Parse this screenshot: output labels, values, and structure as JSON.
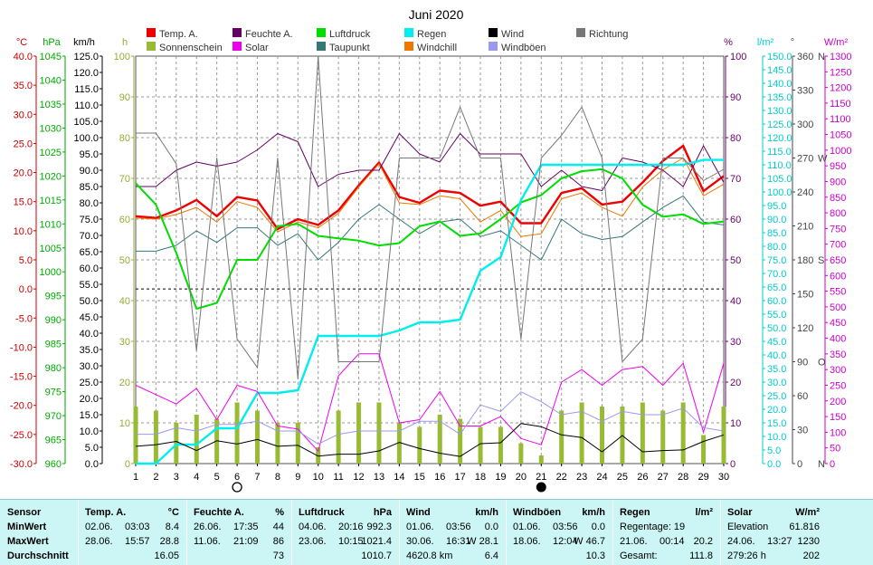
{
  "chart_data": {
    "type": "line",
    "title": "Juni 2020",
    "x": [
      1,
      2,
      3,
      4,
      5,
      6,
      7,
      8,
      9,
      10,
      11,
      12,
      13,
      14,
      15,
      16,
      17,
      18,
      19,
      20,
      21,
      22,
      23,
      24,
      25,
      26,
      27,
      28,
      29,
      30
    ],
    "x_ticks": [
      "1",
      "2",
      "3",
      "4",
      "5",
      "6",
      "7",
      "8",
      "9",
      "10",
      "11",
      "12",
      "13",
      "14",
      "15",
      "16",
      "17",
      "18",
      "19",
      "20",
      "21",
      "22",
      "23",
      "24",
      "25",
      "26",
      "27",
      "28",
      "29",
      "30"
    ],
    "xlim": [
      1,
      30
    ],
    "axes": [
      {
        "label": "°C",
        "color": "#cc0000",
        "min": -30,
        "max": 40,
        "step": 5,
        "ticks_fmt": "1"
      },
      {
        "label": "hPa",
        "color": "#00aa00",
        "min": 960,
        "max": 1045,
        "step": 5,
        "ticks_fmt": "0"
      },
      {
        "label": "km/h",
        "color": "#000000",
        "min": 0,
        "max": 125,
        "step": 5,
        "ticks_fmt": "1"
      },
      {
        "label": "h",
        "color": "#99aa33",
        "min": 0,
        "max": 100,
        "step": 10,
        "ticks_fmt": "0"
      },
      {
        "label": "%",
        "color": "#660066",
        "min": 0,
        "max": 100,
        "step": 10,
        "ticks_fmt": "0"
      },
      {
        "label": "l/m²",
        "color": "#00cccc",
        "min": 0,
        "max": 150,
        "step": 5,
        "ticks_fmt": "1"
      },
      {
        "label": "°",
        "color": "#444444",
        "min": 0,
        "max": 360,
        "step": 30,
        "ticks_fmt": "0"
      },
      {
        "label": "W/m²",
        "color": "#cc00cc",
        "min": 0,
        "max": 1300,
        "step": 50,
        "ticks_fmt": "0"
      }
    ],
    "compass": [
      {
        "deg": 0,
        "label": "N"
      },
      {
        "deg": 90,
        "label": "O"
      },
      {
        "deg": 180,
        "label": "S"
      },
      {
        "deg": 270,
        "label": "W"
      },
      {
        "deg": 360,
        "label": "N"
      }
    ],
    "legend": [
      {
        "name": "Temp. A.",
        "color": "#ee0000"
      },
      {
        "name": "Feuchte A.",
        "color": "#660066"
      },
      {
        "name": "Luftdruck",
        "color": "#00dd00"
      },
      {
        "name": "Regen",
        "color": "#00eeee"
      },
      {
        "name": "Wind",
        "color": "#000000"
      },
      {
        "name": "Richtung",
        "color": "#777777"
      },
      {
        "name": "Sonnenschein",
        "color": "#99bb33"
      },
      {
        "name": "Solar",
        "color": "#ee00ee"
      },
      {
        "name": "Taupunkt",
        "color": "#337777"
      },
      {
        "name": "Windchill",
        "color": "#ee7700"
      },
      {
        "name": "Windböen",
        "color": "#9999ee"
      }
    ],
    "series": [
      {
        "name": "Temp. A.",
        "axis": 0,
        "color": "#ee0000",
        "width": 2.4,
        "values": [
          12.5,
          12.2,
          13.5,
          15.3,
          12.5,
          15.8,
          15.2,
          10.3,
          12.0,
          11.0,
          13.5,
          17.8,
          21.7,
          15.8,
          14.8,
          16.9,
          16.5,
          14.3,
          15.0,
          11.3,
          11.3,
          16.5,
          17.3,
          14.5,
          15.0,
          18.3,
          22.0,
          24.6,
          16.8,
          19.4
        ]
      },
      {
        "name": "Windchill",
        "axis": 0,
        "color": "#ee7700",
        "width": 1,
        "values": [
          12.2,
          12.0,
          12.8,
          14.0,
          11.5,
          15.0,
          14.0,
          9.8,
          11.5,
          10.5,
          13.0,
          17.5,
          21.5,
          14.8,
          14.5,
          16.0,
          15.5,
          11.5,
          13.5,
          9.0,
          9.5,
          15.5,
          16.5,
          14.0,
          12.5,
          17.5,
          20.5,
          22.5,
          16.0,
          18.0
        ]
      },
      {
        "name": "Taupunkt",
        "axis": 0,
        "color": "#337777",
        "width": 1,
        "values": [
          6.5,
          6.5,
          7.5,
          10.0,
          8.0,
          10.5,
          10.5,
          7.5,
          9.5,
          5.0,
          8.0,
          12.0,
          14.5,
          12.0,
          9.5,
          11.5,
          12.0,
          9.0,
          10.0,
          7.5,
          5.0,
          12.0,
          9.5,
          8.5,
          9.0,
          11.5,
          14.0,
          16.0,
          11.5,
          11.0
        ]
      },
      {
        "name": "Feuchte A.",
        "axis": 4,
        "color": "#660066",
        "width": 1,
        "values": [
          68,
          68,
          72,
          74,
          73,
          74,
          77,
          81,
          79,
          68,
          71,
          72,
          72,
          81,
          76,
          74,
          81,
          76,
          76,
          76,
          68,
          72,
          68,
          67,
          75,
          74,
          72,
          68,
          78,
          69
        ]
      },
      {
        "name": "Luftdruck",
        "axis": 1,
        "color": "#00dd00",
        "width": 2,
        "values": [
          1018.5,
          1014.0,
          1004.0,
          992.3,
          993.5,
          1002.5,
          1002.5,
          1009.5,
          1010.0,
          1007.5,
          1007.0,
          1006.5,
          1005.5,
          1006.0,
          1009.5,
          1010.5,
          1007.5,
          1008.0,
          1011.0,
          1014.5,
          1016.0,
          1019.5,
          1021.0,
          1021.4,
          1019.5,
          1014.0,
          1011.5,
          1012.0,
          1010.0,
          1010.5
        ]
      },
      {
        "name": "Regen",
        "axis": 5,
        "color": "#00eeee",
        "width": 2.4,
        "values": [
          0,
          0,
          7,
          7,
          13,
          13,
          26,
          26,
          27,
          47,
          47,
          47,
          47,
          49,
          52,
          52,
          53,
          71,
          76,
          97,
          110,
          110,
          110,
          110,
          110,
          110,
          110,
          110,
          111.8,
          111.8
        ]
      },
      {
        "name": "Richtung",
        "axis": 6,
        "color": "#777777",
        "width": 1,
        "values": [
          292,
          292,
          265,
          100,
          270,
          110,
          85,
          270,
          75,
          360,
          90,
          90,
          90,
          270,
          270,
          270,
          315,
          270,
          270,
          110,
          270,
          290,
          315,
          270,
          90,
          110,
          270,
          270,
          250,
          260
        ]
      },
      {
        "name": "Solar",
        "axis": 7,
        "color": "#ee00ee",
        "width": 1,
        "values": [
          250,
          220,
          190,
          240,
          140,
          250,
          230,
          120,
          110,
          40,
          280,
          350,
          350,
          130,
          140,
          230,
          120,
          120,
          150,
          80,
          60,
          260,
          300,
          250,
          300,
          310,
          250,
          320,
          100,
          320
        ]
      },
      {
        "name": "Windböen",
        "axis": 2,
        "color": "#9999ee",
        "width": 1,
        "values": [
          9,
          9,
          11,
          10,
          12,
          12,
          13,
          10,
          10,
          6,
          9,
          10,
          10,
          10,
          13,
          13,
          9,
          18,
          16,
          22,
          19,
          15,
          16,
          13,
          16,
          15,
          15,
          17,
          11,
          10
        ]
      },
      {
        "name": "Wind",
        "axis": 2,
        "color": "#000000",
        "width": 1,
        "values": [
          5.3,
          5.8,
          6.8,
          4.0,
          7.0,
          6.0,
          7.4,
          5.3,
          5.6,
          2.3,
          2.9,
          2.9,
          3.9,
          6.5,
          4.6,
          3.2,
          2.2,
          6.1,
          6.4,
          12.3,
          11.3,
          8.8,
          8.0,
          3.6,
          8.6,
          3.6,
          4.0,
          4.2,
          6.8,
          8.8
        ]
      }
    ],
    "bars": {
      "name": "Sonnenschein",
      "axis": 3,
      "color": "#99bb33",
      "values": [
        14,
        13,
        10,
        12,
        11,
        15,
        13,
        10,
        10,
        4,
        13,
        15,
        15,
        10,
        9,
        12,
        11,
        9,
        9,
        5,
        2,
        13,
        15,
        14,
        14,
        15,
        13,
        15,
        7,
        14
      ]
    },
    "reference_line": {
      "axis": 0,
      "value": 0.0
    },
    "moon_markers": [
      {
        "day": 6,
        "phase": "full"
      },
      {
        "day": 21,
        "phase": "new"
      }
    ]
  },
  "summary": {
    "row_labels": [
      "Sensor",
      "MinWert",
      "MaxWert",
      "Durchschnitt"
    ],
    "columns": [
      {
        "title": "Temp. A.",
        "unit": "°C",
        "rows": [
          [
            "02.06.",
            "03:03",
            "8.4"
          ],
          [
            "28.06.",
            "15:57",
            "28.8"
          ],
          [
            "",
            "",
            "16.05"
          ]
        ]
      },
      {
        "title": "Feuchte A.",
        "unit": "%",
        "rows": [
          [
            "26.06.",
            "17:35",
            "44"
          ],
          [
            "11.06.",
            "21:09",
            "86"
          ],
          [
            "",
            "",
            "73"
          ]
        ]
      },
      {
        "title": "Luftdruck",
        "unit": "hPa",
        "rows": [
          [
            "04.06.",
            "20:16",
            "992.3"
          ],
          [
            "23.06.",
            "10:15",
            "1021.4"
          ],
          [
            "",
            "",
            "1010.7"
          ]
        ]
      },
      {
        "title": "Wind",
        "unit": "km/h",
        "rows": [
          [
            "01.06.",
            "03:56",
            "0.0"
          ],
          [
            "30.06.",
            "16:31",
            "W 28.1"
          ],
          [
            "4620.8 km",
            "",
            "6.4"
          ]
        ]
      },
      {
        "title": "Windböen",
        "unit": "km/h",
        "rows": [
          [
            "01.06.",
            "03:56",
            "0.0"
          ],
          [
            "18.06.",
            "12:04",
            "W 46.7"
          ],
          [
            "",
            "",
            "10.3"
          ]
        ]
      },
      {
        "title": "Regen",
        "unit": "l/m²",
        "rows": [
          [
            "Regentage: 19",
            "",
            ""
          ],
          [
            "21.06.",
            "00:14",
            "20.2"
          ],
          [
            "Gesamt:",
            "",
            "111.8"
          ]
        ]
      },
      {
        "title": "Solar",
        "unit": "W/m²",
        "rows": [
          [
            "Elevation",
            "",
            "61.816"
          ],
          [
            "24.06.",
            "13:27",
            "1230"
          ],
          [
            "279:26 h",
            "",
            "202"
          ]
        ]
      }
    ]
  }
}
